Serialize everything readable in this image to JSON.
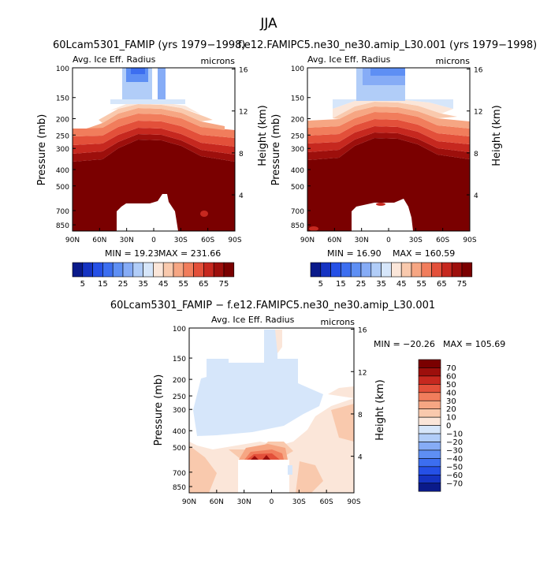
{
  "figure": {
    "title": "JJA",
    "diff_title": "60Lcam5301_FAMIP − f.e12.FAMIPC5.ne30_ne30.amip_L30.001"
  },
  "chart_data": [
    {
      "type": "heatmap",
      "title": "60Lcam5301_FAMIP (yrs 1979−1998)",
      "subtitle_left": "Avg. Ice Eff. Radius",
      "subtitle_right": "microns",
      "xlabel": "",
      "ylabel": "Pressure (mb)",
      "ylabel_right": "Height (km)",
      "x_ticks": [
        "90N",
        "60N",
        "30N",
        "0",
        "30S",
        "60S",
        "90S"
      ],
      "x_values": [
        90,
        60,
        30,
        0,
        -30,
        -60,
        -90
      ],
      "y_ticks": [
        "100",
        "150",
        "200",
        "250",
        "300",
        "400",
        "500",
        "700",
        "850"
      ],
      "y_values": [
        100,
        150,
        200,
        250,
        300,
        400,
        500,
        700,
        850
      ],
      "ylim": [
        100,
        925
      ],
      "right_ticks": [
        "16",
        "12",
        "8",
        "4"
      ],
      "right_values": [
        16,
        12,
        8,
        4
      ],
      "min_label": "MIN =   19.23",
      "max_label": "MAX =  231.66",
      "min": 19.23,
      "max": 231.66,
      "colorbar_labels": [
        "5",
        "15",
        "25",
        "35",
        "45",
        "55",
        "65",
        "75"
      ],
      "colorbar_levels": [
        5,
        10,
        15,
        20,
        25,
        30,
        35,
        40,
        45,
        50,
        55,
        60,
        65,
        70,
        75
      ]
    },
    {
      "type": "heatmap",
      "title": "f.e12.FAMIPC5.ne30_ne30.amip_L30.001 (yrs 1979−1998)",
      "subtitle_left": "Avg. Ice Eff. Radius",
      "subtitle_right": "microns",
      "xlabel": "",
      "ylabel": "Pressure (mb)",
      "ylabel_right": "Height (km)",
      "x_ticks": [
        "90N",
        "60N",
        "30N",
        "0",
        "30S",
        "60S",
        "90S"
      ],
      "x_values": [
        90,
        60,
        30,
        0,
        -30,
        -60,
        -90
      ],
      "y_ticks": [
        "100",
        "150",
        "200",
        "250",
        "300",
        "400",
        "500",
        "700",
        "850"
      ],
      "y_values": [
        100,
        150,
        200,
        250,
        300,
        400,
        500,
        700,
        850
      ],
      "ylim": [
        100,
        925
      ],
      "right_ticks": [
        "16",
        "12",
        "8",
        "4"
      ],
      "right_values": [
        16,
        12,
        8,
        4
      ],
      "min_label": "MIN =   16.90",
      "max_label": "MAX =  160.59",
      "min": 16.9,
      "max": 160.59,
      "colorbar_labels": [
        "5",
        "15",
        "25",
        "35",
        "45",
        "55",
        "65",
        "75"
      ],
      "colorbar_levels": [
        5,
        10,
        15,
        20,
        25,
        30,
        35,
        40,
        45,
        50,
        55,
        60,
        65,
        70,
        75
      ]
    },
    {
      "type": "heatmap",
      "title": "60Lcam5301_FAMIP − f.e12.FAMIPC5.ne30_ne30.amip_L30.001",
      "subtitle_left": "Avg. Ice Eff. Radius",
      "subtitle_right": "microns",
      "xlabel": "",
      "ylabel": "Pressure (mb)",
      "ylabel_right": "Height (km)",
      "x_ticks": [
        "90N",
        "60N",
        "30N",
        "0",
        "30S",
        "60S",
        "90S"
      ],
      "x_values": [
        90,
        60,
        30,
        0,
        -30,
        -60,
        -90
      ],
      "y_ticks": [
        "100",
        "150",
        "200",
        "250",
        "300",
        "400",
        "500",
        "700",
        "850"
      ],
      "y_values": [
        100,
        150,
        200,
        250,
        300,
        400,
        500,
        700,
        850
      ],
      "ylim": [
        100,
        925
      ],
      "right_ticks": [
        "16",
        "12",
        "8",
        "4"
      ],
      "right_values": [
        16,
        12,
        8,
        4
      ],
      "min_label": "MIN =  −20.26",
      "max_label": "MAX =  105.69",
      "min": -20.26,
      "max": 105.69,
      "colorbar_labels": [
        "70",
        "60",
        "50",
        "40",
        "30",
        "20",
        "10",
        "0",
        "−10",
        "−20",
        "−30",
        "−40",
        "−50",
        "−60",
        "−70"
      ],
      "colorbar_levels": [
        70,
        60,
        50,
        40,
        30,
        20,
        10,
        0,
        -10,
        -20,
        -30,
        -40,
        -50,
        -60,
        -70
      ]
    }
  ],
  "colors": {
    "scale": [
      "#0a1a8a",
      "#1533c2",
      "#2550e6",
      "#3c6ef0",
      "#5e8ff4",
      "#86acf6",
      "#b1cdf8",
      "#d6e6fa",
      "#fbe6d9",
      "#f9c9ad",
      "#f6a683",
      "#f17d5c",
      "#e3503a",
      "#c6281f",
      "#9d0f0c",
      "#7a0000"
    ]
  }
}
